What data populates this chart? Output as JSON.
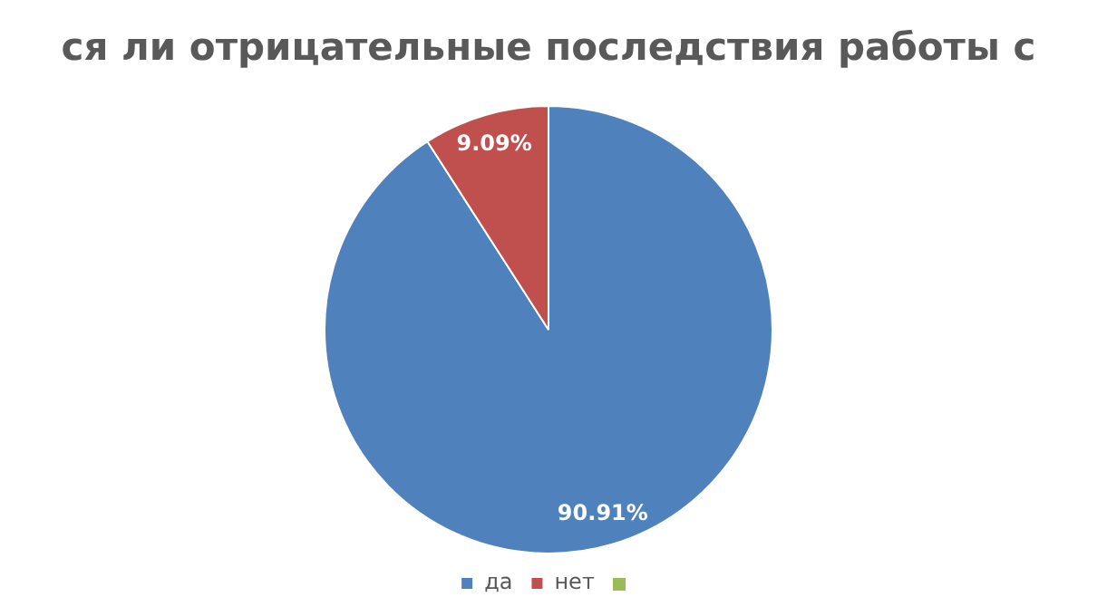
{
  "chart_data": {
    "type": "pie",
    "title": "ся ли отрицательные последствия работы с",
    "categories": [
      "да",
      "нет",
      null
    ],
    "values": [
      90.91,
      9.09,
      0
    ],
    "colors": [
      "#4f81bd",
      "#c0504d",
      "#9bbb59"
    ],
    "value_labels": [
      "90.91%",
      "9.09%",
      null
    ],
    "legend": "bottom"
  }
}
